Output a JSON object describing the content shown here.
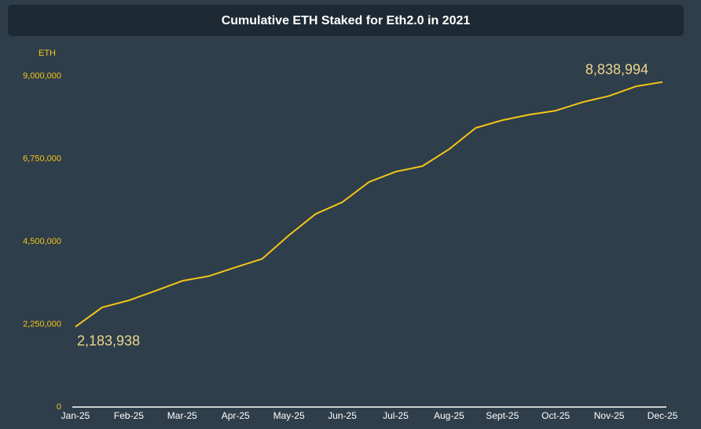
{
  "chart_data": {
    "type": "line",
    "title": "Cumulative ETH Staked for Eth2.0 in 2021",
    "y_label": "ETH",
    "categories": [
      "Jan-25",
      null,
      "Feb-25",
      null,
      "Mar-25",
      null,
      "Apr-25",
      null,
      "May-25",
      null,
      "Jun-25",
      null,
      "Jul-25",
      null,
      "Aug-25",
      null,
      "Sept-25",
      null,
      "Oct-25",
      null,
      "Nov-25",
      null,
      "Dec-25"
    ],
    "series": [
      {
        "name": "ETH",
        "color": "#f5c518",
        "values": [
          2183938,
          2710000,
          2900000,
          3160000,
          3430000,
          3560000,
          3800000,
          4030000,
          4670000,
          5250000,
          5570000,
          6120000,
          6400000,
          6550000,
          7010000,
          7590000,
          7800000,
          7950000,
          8060000,
          8290000,
          8460000,
          8720000,
          8838994
        ],
        "value_labels": [
          "2,183,938",
          null,
          null,
          null,
          null,
          null,
          null,
          null,
          null,
          null,
          null,
          null,
          null,
          null,
          null,
          null,
          null,
          null,
          null,
          null,
          null,
          null,
          "8,838,994"
        ]
      }
    ],
    "ylim": [
      0,
      9000000
    ],
    "yticks": [
      0,
      {
        "value": 2250000,
        "label": "2,250,000"
      },
      {
        "value": 4500000,
        "label": "4,500,000"
      },
      {
        "value": 6750000,
        "label": "6,750,000"
      },
      {
        "value": 9000000,
        "label": "9,000,000"
      }
    ],
    "grid": false
  }
}
